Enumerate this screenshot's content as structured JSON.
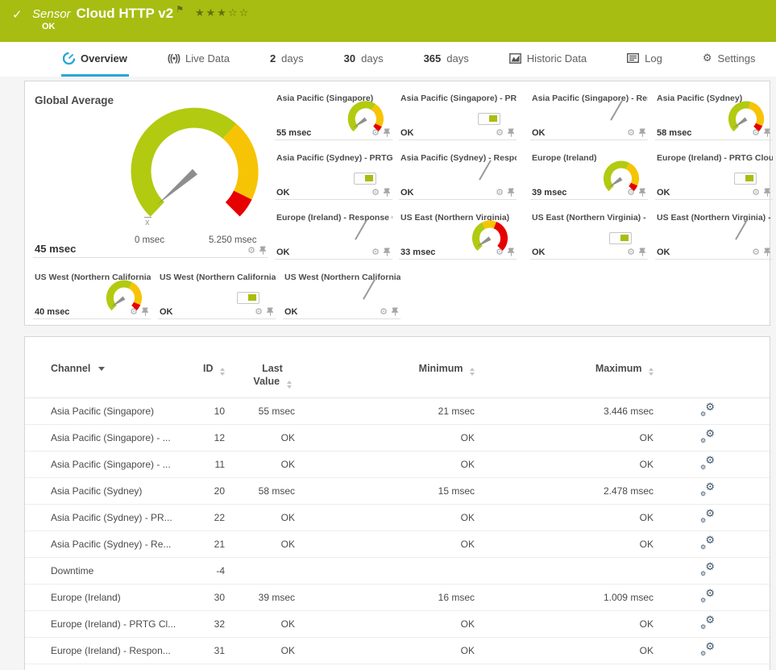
{
  "header": {
    "check_icon": "✓",
    "sensor_label": "Sensor",
    "sensor_name": "Cloud HTTP v2",
    "flag_icon": "⚑",
    "stars": "★★★☆☆",
    "status": "OK"
  },
  "tabs": [
    {
      "id": "overview",
      "icon": "gauge",
      "label": "Overview",
      "active": true
    },
    {
      "id": "live-data",
      "icon": "live",
      "label": "Live Data"
    },
    {
      "id": "2-days",
      "num": "2",
      "label": "days"
    },
    {
      "id": "30-days",
      "num": "30",
      "label": "days"
    },
    {
      "id": "365-days",
      "num": "365",
      "label": "days"
    },
    {
      "id": "historic-data",
      "icon": "historic",
      "label": "Historic Data"
    },
    {
      "id": "log",
      "icon": "log",
      "label": "Log"
    },
    {
      "id": "settings",
      "icon": "gear",
      "label": "Settings"
    }
  ],
  "gauges_panel": {
    "global": {
      "title": "Global Average",
      "value": "45 msec",
      "scale_min_label": "0 msec",
      "scale_max_label": "5.250 msec",
      "mean_marker": "x",
      "widget": "gauge",
      "segments": [
        0.65,
        0.28,
        0.07
      ],
      "needle_angle": -131
    },
    "cells": [
      {
        "title": "Asia Pacific (Singapore)",
        "widget": "gauge",
        "value": "55 msec",
        "segments": [
          0.62,
          0.31,
          0.07
        ],
        "needle_angle": -125
      },
      {
        "title": "Asia Pacific (Singapore) - PR...",
        "widget": "toggle",
        "value": "OK"
      },
      {
        "title": "Asia Pacific (Singapore) - Res...",
        "widget": "needle",
        "value": "OK"
      },
      {
        "title": "Asia Pacific (Sydney)",
        "widget": "gauge",
        "value": "58 msec",
        "segments": [
          0.55,
          0.37,
          0.08
        ],
        "needle_angle": -125
      },
      {
        "title": "Asia Pacific (Sydney) - PRTG ...",
        "widget": "toggle",
        "value": "OK"
      },
      {
        "title": "Asia Pacific (Sydney) - Respo...",
        "widget": "needle",
        "value": "OK"
      },
      {
        "title": "Europe (Ireland)",
        "widget": "gauge",
        "value": "39 msec",
        "segments": [
          0.6,
          0.32,
          0.08
        ],
        "needle_angle": -125
      },
      {
        "title": "Europe (Ireland) - PRTG Cloud...",
        "widget": "toggle",
        "value": "OK"
      },
      {
        "title": "Europe (Ireland) - Response C...",
        "widget": "needle",
        "value": "OK"
      },
      {
        "title": "US East (Northern Virginia)",
        "widget": "gauge",
        "value": "33 msec",
        "segments": [
          0.4,
          0.18,
          0.42
        ],
        "needle_angle": -123
      },
      {
        "title": "US East (Northern Virginia) - ...",
        "widget": "toggle",
        "value": "OK"
      },
      {
        "title": "US East (Northern Virginia) - ...",
        "widget": "needle",
        "value": "OK"
      },
      {
        "title": "US West (Northern California)",
        "widget": "gauge",
        "value": "40 msec",
        "segments": [
          0.6,
          0.32,
          0.08
        ],
        "needle_angle": -125
      },
      {
        "title": "US West (Northern California)...",
        "widget": "toggle",
        "value": "OK"
      },
      {
        "title": "US West (Northern California)...",
        "widget": "needle",
        "value": "OK"
      }
    ]
  },
  "table": {
    "columns": [
      {
        "key": "channel",
        "label": "Channel",
        "sort": "active-desc"
      },
      {
        "key": "id",
        "label": "ID",
        "sort": "both"
      },
      {
        "key": "last",
        "label": "Last Value",
        "sort": "both"
      },
      {
        "key": "min",
        "label": "Minimum",
        "sort": "both"
      },
      {
        "key": "max",
        "label": "Maximum",
        "sort": "both"
      }
    ],
    "rows": [
      {
        "channel": "Asia Pacific (Singapore)",
        "id": "10",
        "last": "55 msec",
        "min": "21 msec",
        "max": "3.446 msec"
      },
      {
        "channel": "Asia Pacific (Singapore) - ...",
        "id": "12",
        "last": "OK",
        "min": "OK",
        "max": "OK"
      },
      {
        "channel": "Asia Pacific (Singapore) - ...",
        "id": "11",
        "last": "OK",
        "min": "OK",
        "max": "OK"
      },
      {
        "channel": "Asia Pacific (Sydney)",
        "id": "20",
        "last": "58 msec",
        "min": "15 msec",
        "max": "2.478 msec"
      },
      {
        "channel": "Asia Pacific (Sydney) - PR...",
        "id": "22",
        "last": "OK",
        "min": "OK",
        "max": "OK"
      },
      {
        "channel": "Asia Pacific (Sydney) - Re...",
        "id": "21",
        "last": "OK",
        "min": "OK",
        "max": "OK"
      },
      {
        "channel": "Downtime",
        "id": "-4",
        "last": "",
        "min": "",
        "max": ""
      },
      {
        "channel": "Europe (Ireland)",
        "id": "30",
        "last": "39 msec",
        "min": "16 msec",
        "max": "1.009 msec"
      },
      {
        "channel": "Europe (Ireland) - PRTG Cl...",
        "id": "32",
        "last": "OK",
        "min": "OK",
        "max": "OK"
      },
      {
        "channel": "Europe (Ireland) - Respon...",
        "id": "31",
        "last": "OK",
        "min": "OK",
        "max": "OK"
      }
    ]
  },
  "colors": {
    "header_bar": "#a7bd11",
    "tab_active_underline": "#2aa7d8",
    "gauge_segments": [
      "#b2ca10",
      "#f6c404",
      "#e60000"
    ],
    "needle": "#8e8e8e",
    "ok_green": "#a9bd10"
  }
}
